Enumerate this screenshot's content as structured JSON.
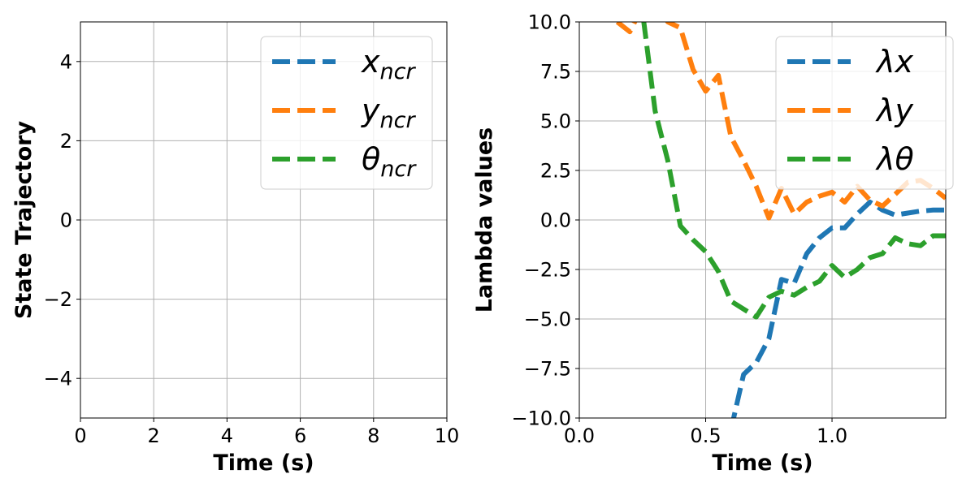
{
  "chart_data": [
    {
      "type": "line",
      "xlabel": "Time (s)",
      "ylabel": "State Trajectory",
      "xlim": [
        0,
        10
      ],
      "ylim": [
        -5,
        5
      ],
      "xticks": [
        0,
        2,
        4,
        6,
        8,
        10
      ],
      "yticks": [
        -4,
        -2,
        0,
        2,
        4
      ],
      "xtick_labels": [
        "0",
        "2",
        "4",
        "6",
        "8",
        "10"
      ],
      "ytick_labels": [
        "−4",
        "−2",
        "0",
        "2",
        "4"
      ],
      "grid": true,
      "legend_position": "upper right",
      "series": [
        {
          "name": "x",
          "sub": "ncr",
          "color": "#1f77b4",
          "style": "dashed",
          "x": [],
          "y": []
        },
        {
          "name": "y",
          "sub": "ncr",
          "color": "#ff7f0e",
          "style": "dashed",
          "x": [],
          "y": []
        },
        {
          "name": "θ",
          "sub": "ncr",
          "color": "#2ca02c",
          "style": "dashed",
          "x": [],
          "y": []
        }
      ]
    },
    {
      "type": "line",
      "xlabel": "Time (s)",
      "ylabel": "Lambda values",
      "xlim": [
        0,
        1.45
      ],
      "ylim": [
        -10,
        10
      ],
      "xticks": [
        0,
        0.5,
        1.0
      ],
      "yticks": [
        -10,
        -7.5,
        -5,
        -2.5,
        0,
        2.5,
        5,
        7.5,
        10
      ],
      "xtick_labels": [
        "0.0",
        "0.5",
        "1.0"
      ],
      "ytick_labels": [
        "−10.0",
        "−7.5",
        "−5.0",
        "−2.5",
        "0.0",
        "2.5",
        "5.0",
        "7.5",
        "10.0"
      ],
      "grid": true,
      "legend_position": "upper right",
      "series": [
        {
          "name": "λx",
          "sub": "",
          "color": "#1f77b4",
          "style": "dashed",
          "x": [
            0.6,
            0.65,
            0.7,
            0.75,
            0.8,
            0.85,
            0.9,
            0.95,
            1.0,
            1.05,
            1.1,
            1.15,
            1.2,
            1.25,
            1.3,
            1.35,
            1.4,
            1.45
          ],
          "y": [
            -10.6,
            -7.8,
            -7.2,
            -6.0,
            -3.0,
            -3.2,
            -1.7,
            -0.9,
            -0.4,
            -0.4,
            0.3,
            0.9,
            0.5,
            0.25,
            0.35,
            0.45,
            0.5,
            0.5
          ]
        },
        {
          "name": "λy",
          "sub": "",
          "color": "#ff7f0e",
          "style": "dashed",
          "x": [
            0.15,
            0.2,
            0.25,
            0.3,
            0.35,
            0.4,
            0.45,
            0.5,
            0.55,
            0.6,
            0.65,
            0.7,
            0.75,
            0.8,
            0.85,
            0.9,
            0.95,
            1.0,
            1.05,
            1.1,
            1.15,
            1.2,
            1.25,
            1.3,
            1.35,
            1.4,
            1.45
          ],
          "y": [
            10.0,
            9.5,
            10.8,
            11.0,
            10.0,
            9.7,
            7.6,
            6.5,
            7.3,
            4.2,
            3.0,
            1.7,
            0.1,
            1.6,
            0.3,
            0.9,
            1.2,
            1.4,
            0.9,
            1.7,
            1.0,
            0.7,
            1.3,
            1.9,
            2.0,
            1.6,
            1.1
          ]
        },
        {
          "name": "λθ",
          "sub": "",
          "color": "#2ca02c",
          "style": "dashed",
          "x": [
            0.2,
            0.25,
            0.3,
            0.35,
            0.4,
            0.45,
            0.5,
            0.55,
            0.6,
            0.65,
            0.7,
            0.75,
            0.8,
            0.85,
            0.9,
            0.95,
            1.0,
            1.05,
            1.1,
            1.15,
            1.2,
            1.25,
            1.3,
            1.35,
            1.4,
            1.45
          ],
          "y": [
            11.0,
            10.5,
            5.5,
            3.0,
            -0.3,
            -1.0,
            -1.6,
            -2.6,
            -4.1,
            -4.5,
            -4.9,
            -3.9,
            -3.6,
            -3.8,
            -3.4,
            -3.1,
            -2.3,
            -2.9,
            -2.5,
            -1.9,
            -1.7,
            -0.9,
            -1.2,
            -1.3,
            -0.8,
            -0.8
          ]
        }
      ]
    }
  ]
}
